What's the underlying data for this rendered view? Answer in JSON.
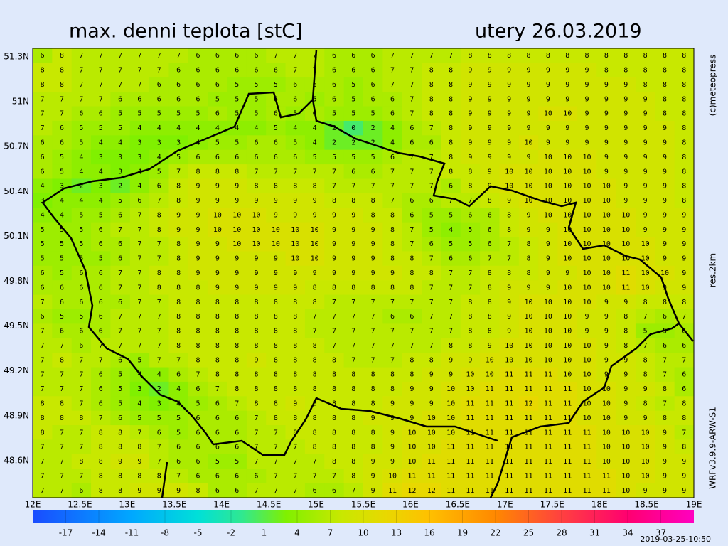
{
  "header": {
    "title": "max. denni teplota [stC]",
    "date": "utery 26.03.2019"
  },
  "side": {
    "copyright": "(c)meteopress",
    "resolution": "res.2km",
    "model": "WRFv3.9.9-ARW-S1"
  },
  "footer": {
    "timestamp": "2019-03-25-10:50"
  },
  "axes": {
    "lat_labels": [
      "51.3N",
      "51N",
      "50.7N",
      "50.4N",
      "50.1N",
      "49.8N",
      "49.5N",
      "49.2N",
      "48.9N",
      "48.6N"
    ],
    "lon_labels": [
      "12E",
      "12.5E",
      "13E",
      "13.5E",
      "14E",
      "14.5E",
      "15E",
      "15.5E",
      "16E",
      "16.5E",
      "17E",
      "17.5E",
      "18E",
      "18.5E",
      "19E"
    ]
  },
  "colorbar": {
    "range": [
      -20,
      40
    ],
    "ticks": [
      -17,
      -14,
      -11,
      -8,
      -5,
      -2,
      1,
      4,
      7,
      10,
      13,
      16,
      19,
      22,
      25,
      28,
      31,
      34,
      37
    ],
    "stops": [
      {
        "value": -20,
        "color": "#1a4cff"
      },
      {
        "value": -11,
        "color": "#00a8ff"
      },
      {
        "value": -5,
        "color": "#00e0d8"
      },
      {
        "value": -1,
        "color": "#30e890"
      },
      {
        "value": 3,
        "color": "#80f000"
      },
      {
        "value": 8,
        "color": "#c8e800"
      },
      {
        "value": 12,
        "color": "#e8d800"
      },
      {
        "value": 16,
        "color": "#ffc000"
      },
      {
        "value": 22,
        "color": "#ff8800"
      },
      {
        "value": 28,
        "color": "#ff4040"
      },
      {
        "value": 34,
        "color": "#ff0070"
      },
      {
        "value": 40,
        "color": "#ff00c0"
      }
    ]
  },
  "grid": [
    [
      6,
      8,
      7,
      7,
      7,
      7,
      7,
      7,
      6,
      6,
      6,
      6,
      7,
      7,
      7,
      6,
      6,
      6,
      7,
      7,
      7,
      7,
      8,
      8,
      8,
      8,
      8,
      8,
      8,
      8,
      8,
      8,
      8,
      8
    ],
    [
      8,
      8,
      7,
      7,
      7,
      7,
      7,
      6,
      6,
      6,
      6,
      6,
      6,
      7,
      7,
      6,
      6,
      6,
      7,
      7,
      8,
      8,
      9,
      9,
      9,
      9,
      9,
      9,
      9,
      8,
      8,
      8,
      8,
      8
    ],
    [
      8,
      8,
      7,
      7,
      7,
      7,
      6,
      6,
      6,
      6,
      5,
      5,
      5,
      6,
      6,
      6,
      5,
      6,
      7,
      7,
      8,
      8,
      9,
      9,
      9,
      9,
      9,
      9,
      9,
      9,
      9,
      8,
      8,
      8
    ],
    [
      7,
      7,
      7,
      7,
      6,
      6,
      6,
      6,
      6,
      5,
      5,
      5,
      6,
      6,
      5,
      6,
      5,
      6,
      6,
      7,
      8,
      8,
      9,
      9,
      9,
      9,
      9,
      9,
      9,
      9,
      9,
      9,
      8,
      8
    ],
    [
      7,
      7,
      6,
      6,
      5,
      5,
      5,
      5,
      5,
      6,
      5,
      5,
      6,
      5,
      6,
      5,
      5,
      5,
      6,
      7,
      8,
      8,
      9,
      9,
      9,
      9,
      10,
      10,
      9,
      9,
      9,
      9,
      8,
      8
    ],
    [
      7,
      6,
      5,
      5,
      5,
      4,
      4,
      4,
      4,
      4,
      4,
      4,
      5,
      4,
      4,
      2,
      0,
      2,
      4,
      6,
      7,
      8,
      9,
      9,
      9,
      9,
      9,
      9,
      9,
      9,
      9,
      9,
      9,
      8
    ],
    [
      6,
      6,
      5,
      4,
      4,
      3,
      3,
      3,
      4,
      5,
      5,
      6,
      6,
      5,
      4,
      2,
      2,
      2,
      4,
      6,
      6,
      8,
      9,
      9,
      9,
      10,
      9,
      9,
      9,
      9,
      9,
      9,
      9,
      8
    ],
    [
      6,
      5,
      4,
      3,
      3,
      3,
      4,
      5,
      6,
      6,
      6,
      6,
      6,
      6,
      5,
      5,
      5,
      5,
      6,
      7,
      7,
      8,
      9,
      9,
      9,
      9,
      10,
      10,
      10,
      9,
      9,
      9,
      9,
      8
    ],
    [
      6,
      5,
      4,
      4,
      3,
      4,
      5,
      7,
      8,
      8,
      8,
      7,
      7,
      7,
      7,
      7,
      6,
      6,
      7,
      7,
      7,
      8,
      8,
      9,
      10,
      10,
      10,
      10,
      10,
      9,
      9,
      9,
      9,
      8
    ],
    [
      4,
      3,
      2,
      3,
      2,
      4,
      6,
      8,
      9,
      9,
      9,
      8,
      8,
      8,
      8,
      7,
      7,
      7,
      7,
      7,
      7,
      6,
      8,
      9,
      10,
      10,
      10,
      10,
      10,
      10,
      9,
      9,
      9,
      8
    ],
    [
      3,
      4,
      4,
      4,
      5,
      6,
      7,
      8,
      9,
      9,
      9,
      9,
      9,
      9,
      9,
      8,
      8,
      8,
      7,
      6,
      6,
      7,
      7,
      8,
      9,
      10,
      10,
      10,
      10,
      10,
      9,
      9,
      9,
      8
    ],
    [
      4,
      4,
      5,
      5,
      6,
      7,
      8,
      9,
      9,
      10,
      10,
      10,
      9,
      9,
      9,
      9,
      9,
      8,
      8,
      6,
      5,
      5,
      6,
      6,
      8,
      9,
      10,
      10,
      10,
      10,
      10,
      9,
      9,
      9
    ],
    [
      5,
      5,
      5,
      6,
      7,
      7,
      8,
      9,
      9,
      10,
      10,
      10,
      10,
      10,
      10,
      9,
      9,
      9,
      8,
      7,
      5,
      4,
      5,
      6,
      8,
      9,
      9,
      10,
      10,
      10,
      10,
      9,
      9,
      9
    ],
    [
      5,
      5,
      5,
      6,
      6,
      7,
      7,
      8,
      9,
      9,
      10,
      10,
      10,
      10,
      10,
      9,
      9,
      9,
      8,
      7,
      6,
      5,
      5,
      6,
      7,
      8,
      9,
      10,
      10,
      10,
      10,
      10,
      9,
      9
    ],
    [
      5,
      5,
      5,
      5,
      6,
      7,
      7,
      8,
      9,
      9,
      9,
      9,
      9,
      10,
      10,
      9,
      9,
      9,
      8,
      8,
      7,
      6,
      6,
      7,
      7,
      8,
      9,
      10,
      10,
      10,
      10,
      10,
      9,
      9
    ],
    [
      6,
      5,
      6,
      6,
      7,
      7,
      8,
      8,
      9,
      9,
      9,
      9,
      9,
      9,
      9,
      9,
      9,
      9,
      9,
      8,
      8,
      7,
      7,
      8,
      8,
      8,
      9,
      9,
      10,
      10,
      11,
      10,
      10,
      9
    ],
    [
      6,
      6,
      6,
      6,
      7,
      7,
      8,
      8,
      8,
      9,
      9,
      9,
      9,
      9,
      8,
      8,
      8,
      8,
      8,
      8,
      7,
      7,
      7,
      8,
      9,
      9,
      9,
      10,
      10,
      10,
      11,
      10,
      9,
      9
    ],
    [
      7,
      6,
      6,
      6,
      6,
      7,
      7,
      8,
      8,
      8,
      8,
      8,
      8,
      8,
      8,
      7,
      7,
      7,
      7,
      7,
      7,
      7,
      8,
      8,
      9,
      10,
      10,
      10,
      10,
      9,
      9,
      8,
      8,
      8
    ],
    [
      6,
      5,
      5,
      6,
      7,
      7,
      7,
      8,
      8,
      8,
      8,
      8,
      8,
      8,
      7,
      7,
      7,
      7,
      6,
      6,
      7,
      7,
      8,
      8,
      9,
      10,
      10,
      10,
      9,
      9,
      8,
      7,
      6,
      7
    ],
    [
      7,
      6,
      6,
      6,
      7,
      7,
      7,
      8,
      8,
      8,
      8,
      8,
      8,
      8,
      7,
      7,
      7,
      7,
      7,
      7,
      7,
      7,
      8,
      8,
      9,
      10,
      10,
      10,
      9,
      9,
      8,
      5,
      5,
      6
    ],
    [
      7,
      7,
      6,
      7,
      7,
      7,
      7,
      8,
      8,
      8,
      8,
      8,
      8,
      8,
      8,
      7,
      7,
      7,
      7,
      7,
      7,
      8,
      8,
      9,
      10,
      10,
      10,
      10,
      10,
      9,
      8,
      7,
      6,
      6
    ],
    [
      7,
      8,
      7,
      7,
      6,
      5,
      7,
      7,
      8,
      8,
      8,
      9,
      8,
      8,
      8,
      8,
      7,
      7,
      7,
      8,
      8,
      9,
      9,
      10,
      10,
      10,
      10,
      10,
      10,
      9,
      9,
      8,
      7,
      7
    ],
    [
      7,
      7,
      7,
      6,
      5,
      4,
      4,
      6,
      7,
      8,
      8,
      8,
      8,
      8,
      8,
      8,
      8,
      8,
      8,
      8,
      9,
      9,
      10,
      10,
      11,
      11,
      11,
      10,
      10,
      9,
      9,
      8,
      7,
      6
    ],
    [
      7,
      7,
      7,
      6,
      5,
      3,
      2,
      4,
      6,
      7,
      8,
      8,
      8,
      8,
      8,
      8,
      8,
      8,
      8,
      9,
      9,
      10,
      10,
      11,
      11,
      11,
      11,
      11,
      10,
      10,
      9,
      9,
      8,
      6
    ],
    [
      8,
      8,
      7,
      6,
      5,
      4,
      3,
      4,
      5,
      6,
      7,
      8,
      8,
      9,
      8,
      8,
      8,
      8,
      9,
      9,
      9,
      10,
      11,
      11,
      11,
      12,
      11,
      11,
      10,
      10,
      9,
      8,
      7,
      8
    ],
    [
      8,
      8,
      8,
      7,
      6,
      5,
      5,
      5,
      6,
      6,
      6,
      7,
      8,
      8,
      8,
      8,
      8,
      9,
      9,
      9,
      10,
      10,
      11,
      11,
      11,
      11,
      11,
      11,
      10,
      10,
      9,
      9,
      8,
      8
    ],
    [
      8,
      7,
      7,
      8,
      8,
      7,
      6,
      5,
      6,
      6,
      6,
      7,
      7,
      8,
      8,
      8,
      8,
      8,
      9,
      10,
      10,
      10,
      11,
      11,
      11,
      11,
      11,
      11,
      11,
      10,
      10,
      10,
      9,
      7
    ],
    [
      7,
      7,
      7,
      8,
      8,
      8,
      7,
      6,
      6,
      6,
      6,
      7,
      7,
      7,
      8,
      8,
      8,
      8,
      9,
      10,
      10,
      11,
      11,
      11,
      11,
      11,
      11,
      11,
      11,
      10,
      10,
      10,
      9,
      8
    ],
    [
      7,
      7,
      8,
      8,
      9,
      9,
      7,
      6,
      6,
      5,
      5,
      7,
      7,
      7,
      7,
      8,
      8,
      9,
      9,
      10,
      11,
      11,
      11,
      11,
      11,
      11,
      11,
      11,
      11,
      10,
      10,
      10,
      9,
      9
    ],
    [
      7,
      7,
      7,
      8,
      8,
      8,
      8,
      7,
      6,
      6,
      6,
      6,
      7,
      7,
      7,
      7,
      8,
      9,
      10,
      11,
      11,
      11,
      11,
      11,
      11,
      11,
      11,
      11,
      11,
      11,
      10,
      10,
      9,
      9
    ],
    [
      7,
      7,
      6,
      8,
      8,
      9,
      9,
      9,
      8,
      6,
      6,
      7,
      7,
      7,
      6,
      6,
      7,
      9,
      11,
      12,
      12,
      11,
      11,
      11,
      11,
      11,
      11,
      11,
      11,
      11,
      10,
      9,
      9,
      9
    ]
  ]
}
